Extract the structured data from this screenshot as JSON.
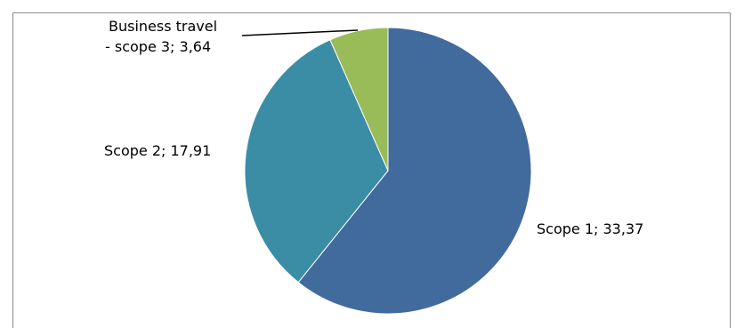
{
  "chart_data": {
    "type": "pie",
    "title": "",
    "slices": [
      {
        "label": "Scope 1",
        "value": 33.37,
        "value_text": "33,37",
        "color": "#416a9d"
      },
      {
        "label": "Scope 2",
        "value": 17.91,
        "value_text": "17,91",
        "color": "#3a8da5"
      },
      {
        "label": "Business travel - scope 3",
        "label_lines": [
          "Business travel",
          "- scope 3; 3,64"
        ],
        "value": 3.64,
        "value_text": "3,64",
        "color": "#99bb58"
      }
    ],
    "legend": "none",
    "data_labels": [
      "Scope 1; 33,37",
      "Scope 2; 17,91",
      "Business travel",
      "- scope 3; 3,64"
    ]
  }
}
